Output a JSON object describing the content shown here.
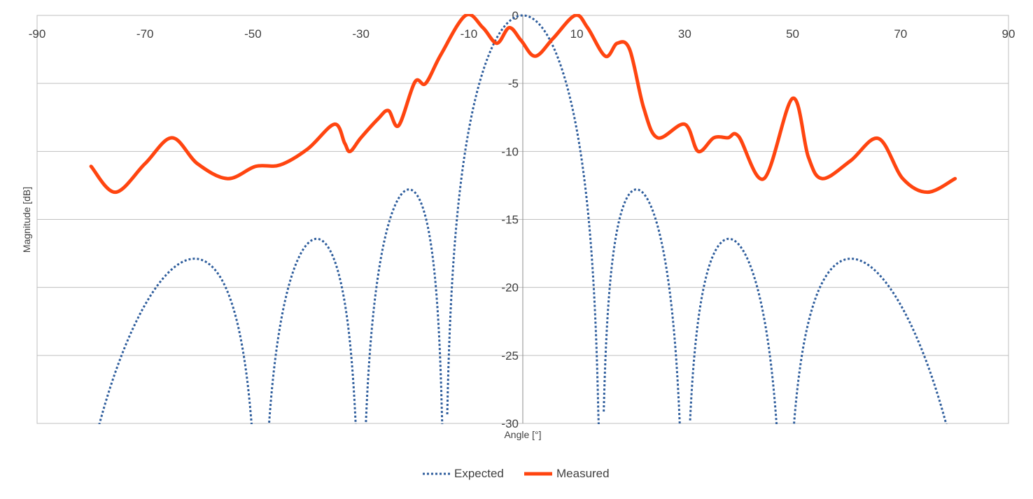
{
  "chart_data": {
    "type": "line",
    "title": "",
    "xlabel": "Angle [°]",
    "ylabel": "Magnitude [dB]",
    "xlim": [
      -90,
      90
    ],
    "ylim": [
      -30,
      0
    ],
    "x_ticks": [
      -90,
      -70,
      -50,
      -30,
      -10,
      10,
      30,
      50,
      70,
      90
    ],
    "y_ticks": [
      0,
      -5,
      -10,
      -15,
      -20,
      -25,
      -30
    ],
    "grid": "horizontal",
    "legend_position": "bottom",
    "colors": {
      "expected": "#2e5d9c",
      "measured": "#ff4510",
      "grid": "#bfbfbf"
    },
    "series": [
      {
        "name": "Expected",
        "style": "dotted",
        "model": {
          "type": "uniform-array-factor",
          "elements": 8,
          "spacing_wavelengths": 0.5,
          "x_range": [
            -80,
            80
          ],
          "step": 0.1
        },
        "key_points": {
          "main_lobe_peak": [
            0,
            0
          ],
          "sidelobes": [
            [
              -61,
              -19.5
            ],
            [
              -38.7,
              -17.2
            ],
            [
              -21.5,
              -13.0
            ],
            [
              21.5,
              -13.0
            ],
            [
              38.7,
              -17.2
            ],
            [
              61,
              -19.5
            ]
          ],
          "nulls_deg": [
            -48.6,
            -30,
            -14.5,
            14.5,
            30,
            48.6
          ]
        }
      },
      {
        "name": "Measured",
        "style": "solid",
        "x": [
          -80,
          -75.5,
          -70,
          -65,
          -60.3,
          -54.7,
          -49.5,
          -45,
          -39.8,
          -34.9,
          -33,
          -32,
          -30,
          -26.8,
          -24.9,
          -23,
          -20,
          -18,
          -15.2,
          -10.6,
          -7.4,
          -4.8,
          -2.5,
          -0.3,
          2.3,
          5.6,
          9.7,
          12,
          15.3,
          17.5,
          19.8,
          22.4,
          25,
          30,
          32.5,
          35.4,
          38,
          40,
          44.7,
          50,
          52.9,
          55.5,
          60.7,
          65.9,
          70.4,
          75,
          80.1
        ],
        "y": [
          -11.1,
          -13,
          -10.9,
          -9,
          -10.9,
          -12,
          -11.1,
          -11,
          -9.8,
          -8,
          -9.4,
          -10,
          -9,
          -7.6,
          -7,
          -8.1,
          -4.9,
          -5,
          -2.9,
          0,
          -0.9,
          -2.05,
          -0.9,
          -1.85,
          -3,
          -1.7,
          0,
          -0.9,
          -3,
          -2.05,
          -2.5,
          -6.8,
          -9,
          -8,
          -10,
          -9,
          -9,
          -8.9,
          -12,
          -6.1,
          -10.4,
          -12,
          -10.7,
          -9.05,
          -12,
          -13,
          -12
        ]
      }
    ]
  }
}
